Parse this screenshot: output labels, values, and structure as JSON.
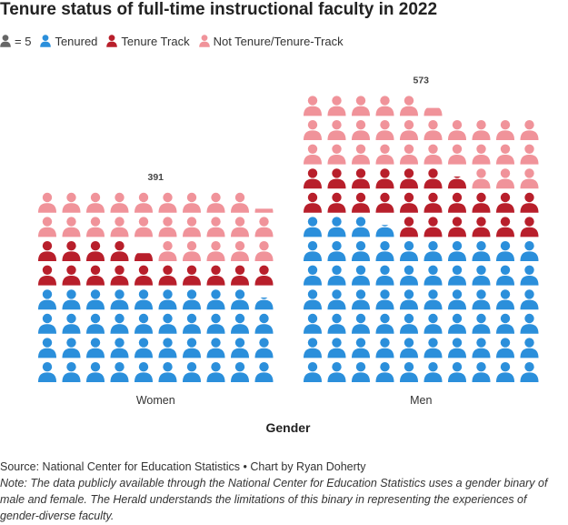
{
  "title": "Tenure status of full-time instructional faculty in 2022",
  "legend": {
    "unit_label": "= 5",
    "unit_color": "#666666",
    "items": [
      {
        "label": "Tenured",
        "color": "#2b8fdb",
        "icon": "person-icon"
      },
      {
        "label": "Tenure Track",
        "color": "#b81f2b",
        "icon": "person-icon"
      },
      {
        "label": "Not Tenure/Tenure-Track",
        "color": "#f0939a",
        "icon": "person-icon"
      }
    ]
  },
  "chart_data": {
    "type": "waffle-pictogram",
    "units_per_icon": 5,
    "xlabel": "Gender",
    "categories": [
      "Women",
      "Men"
    ],
    "totals": [
      391,
      573
    ],
    "series": [
      {
        "name": "Tenured",
        "color": "#2b8fdb",
        "values": [
          198,
          318
        ]
      },
      {
        "name": "Tenure Track",
        "color": "#b81f2b",
        "values": [
          72,
          113
        ]
      },
      {
        "name": "Not Tenure/Tenure-Track",
        "color": "#f0939a",
        "values": [
          121,
          142
        ]
      }
    ]
  },
  "footer": {
    "source": "Source: National Center for Education Statistics • Chart by Ryan Doherty",
    "note": "Note: The data publicly available through the National Center for Education Statistics uses a gender binary of male and female. The Herald understands the limitations of this binary in representing the experiences of gender-diverse faculty."
  }
}
